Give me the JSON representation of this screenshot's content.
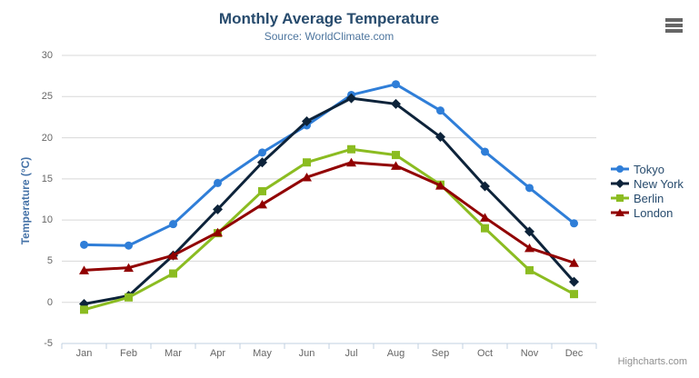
{
  "header": {
    "title": "Monthly Average Temperature",
    "subtitle": "Source: WorldClimate.com"
  },
  "chart_data": {
    "type": "line",
    "title": "Monthly Average Temperature",
    "subtitle": "Source: WorldClimate.com",
    "categories": [
      "Jan",
      "Feb",
      "Mar",
      "Apr",
      "May",
      "Jun",
      "Jul",
      "Aug",
      "Sep",
      "Oct",
      "Nov",
      "Dec"
    ],
    "series": [
      {
        "name": "Tokyo",
        "color": "#2f7ed8",
        "marker": "circle",
        "values": [
          7.0,
          6.9,
          9.5,
          14.5,
          18.2,
          21.5,
          25.2,
          26.5,
          23.3,
          18.3,
          13.9,
          9.6
        ]
      },
      {
        "name": "New York",
        "color": "#0d233a",
        "marker": "diamond",
        "values": [
          -0.2,
          0.8,
          5.7,
          11.3,
          17.0,
          22.0,
          24.8,
          24.1,
          20.1,
          14.1,
          8.6,
          2.5
        ]
      },
      {
        "name": "Berlin",
        "color": "#8bbc21",
        "marker": "square",
        "values": [
          -0.9,
          0.6,
          3.5,
          8.4,
          13.5,
          17.0,
          18.6,
          17.9,
          14.3,
          9.0,
          3.9,
          1.0
        ]
      },
      {
        "name": "London",
        "color": "#910000",
        "marker": "triangle",
        "values": [
          3.9,
          4.2,
          5.7,
          8.5,
          11.9,
          15.2,
          17.0,
          16.6,
          14.2,
          10.3,
          6.6,
          4.8
        ]
      }
    ],
    "xlabel": "",
    "ylabel": "Temperature (°C)",
    "ylim": [
      -5,
      30
    ],
    "ytick_step": 5,
    "grid": true,
    "legend_position": "right"
  },
  "credit": {
    "label": "Highcharts.com"
  },
  "colors": {
    "title": "#274b6d",
    "subtitle": "#4d759e",
    "axis_title": "#4572a7",
    "tick_label": "#666666",
    "grid_line": "#d8d8d8",
    "axis_line": "#c0d0e0",
    "legend_text": "#274b6d",
    "burger_icon": "#666666",
    "credit_text": "#8f8f8f"
  }
}
